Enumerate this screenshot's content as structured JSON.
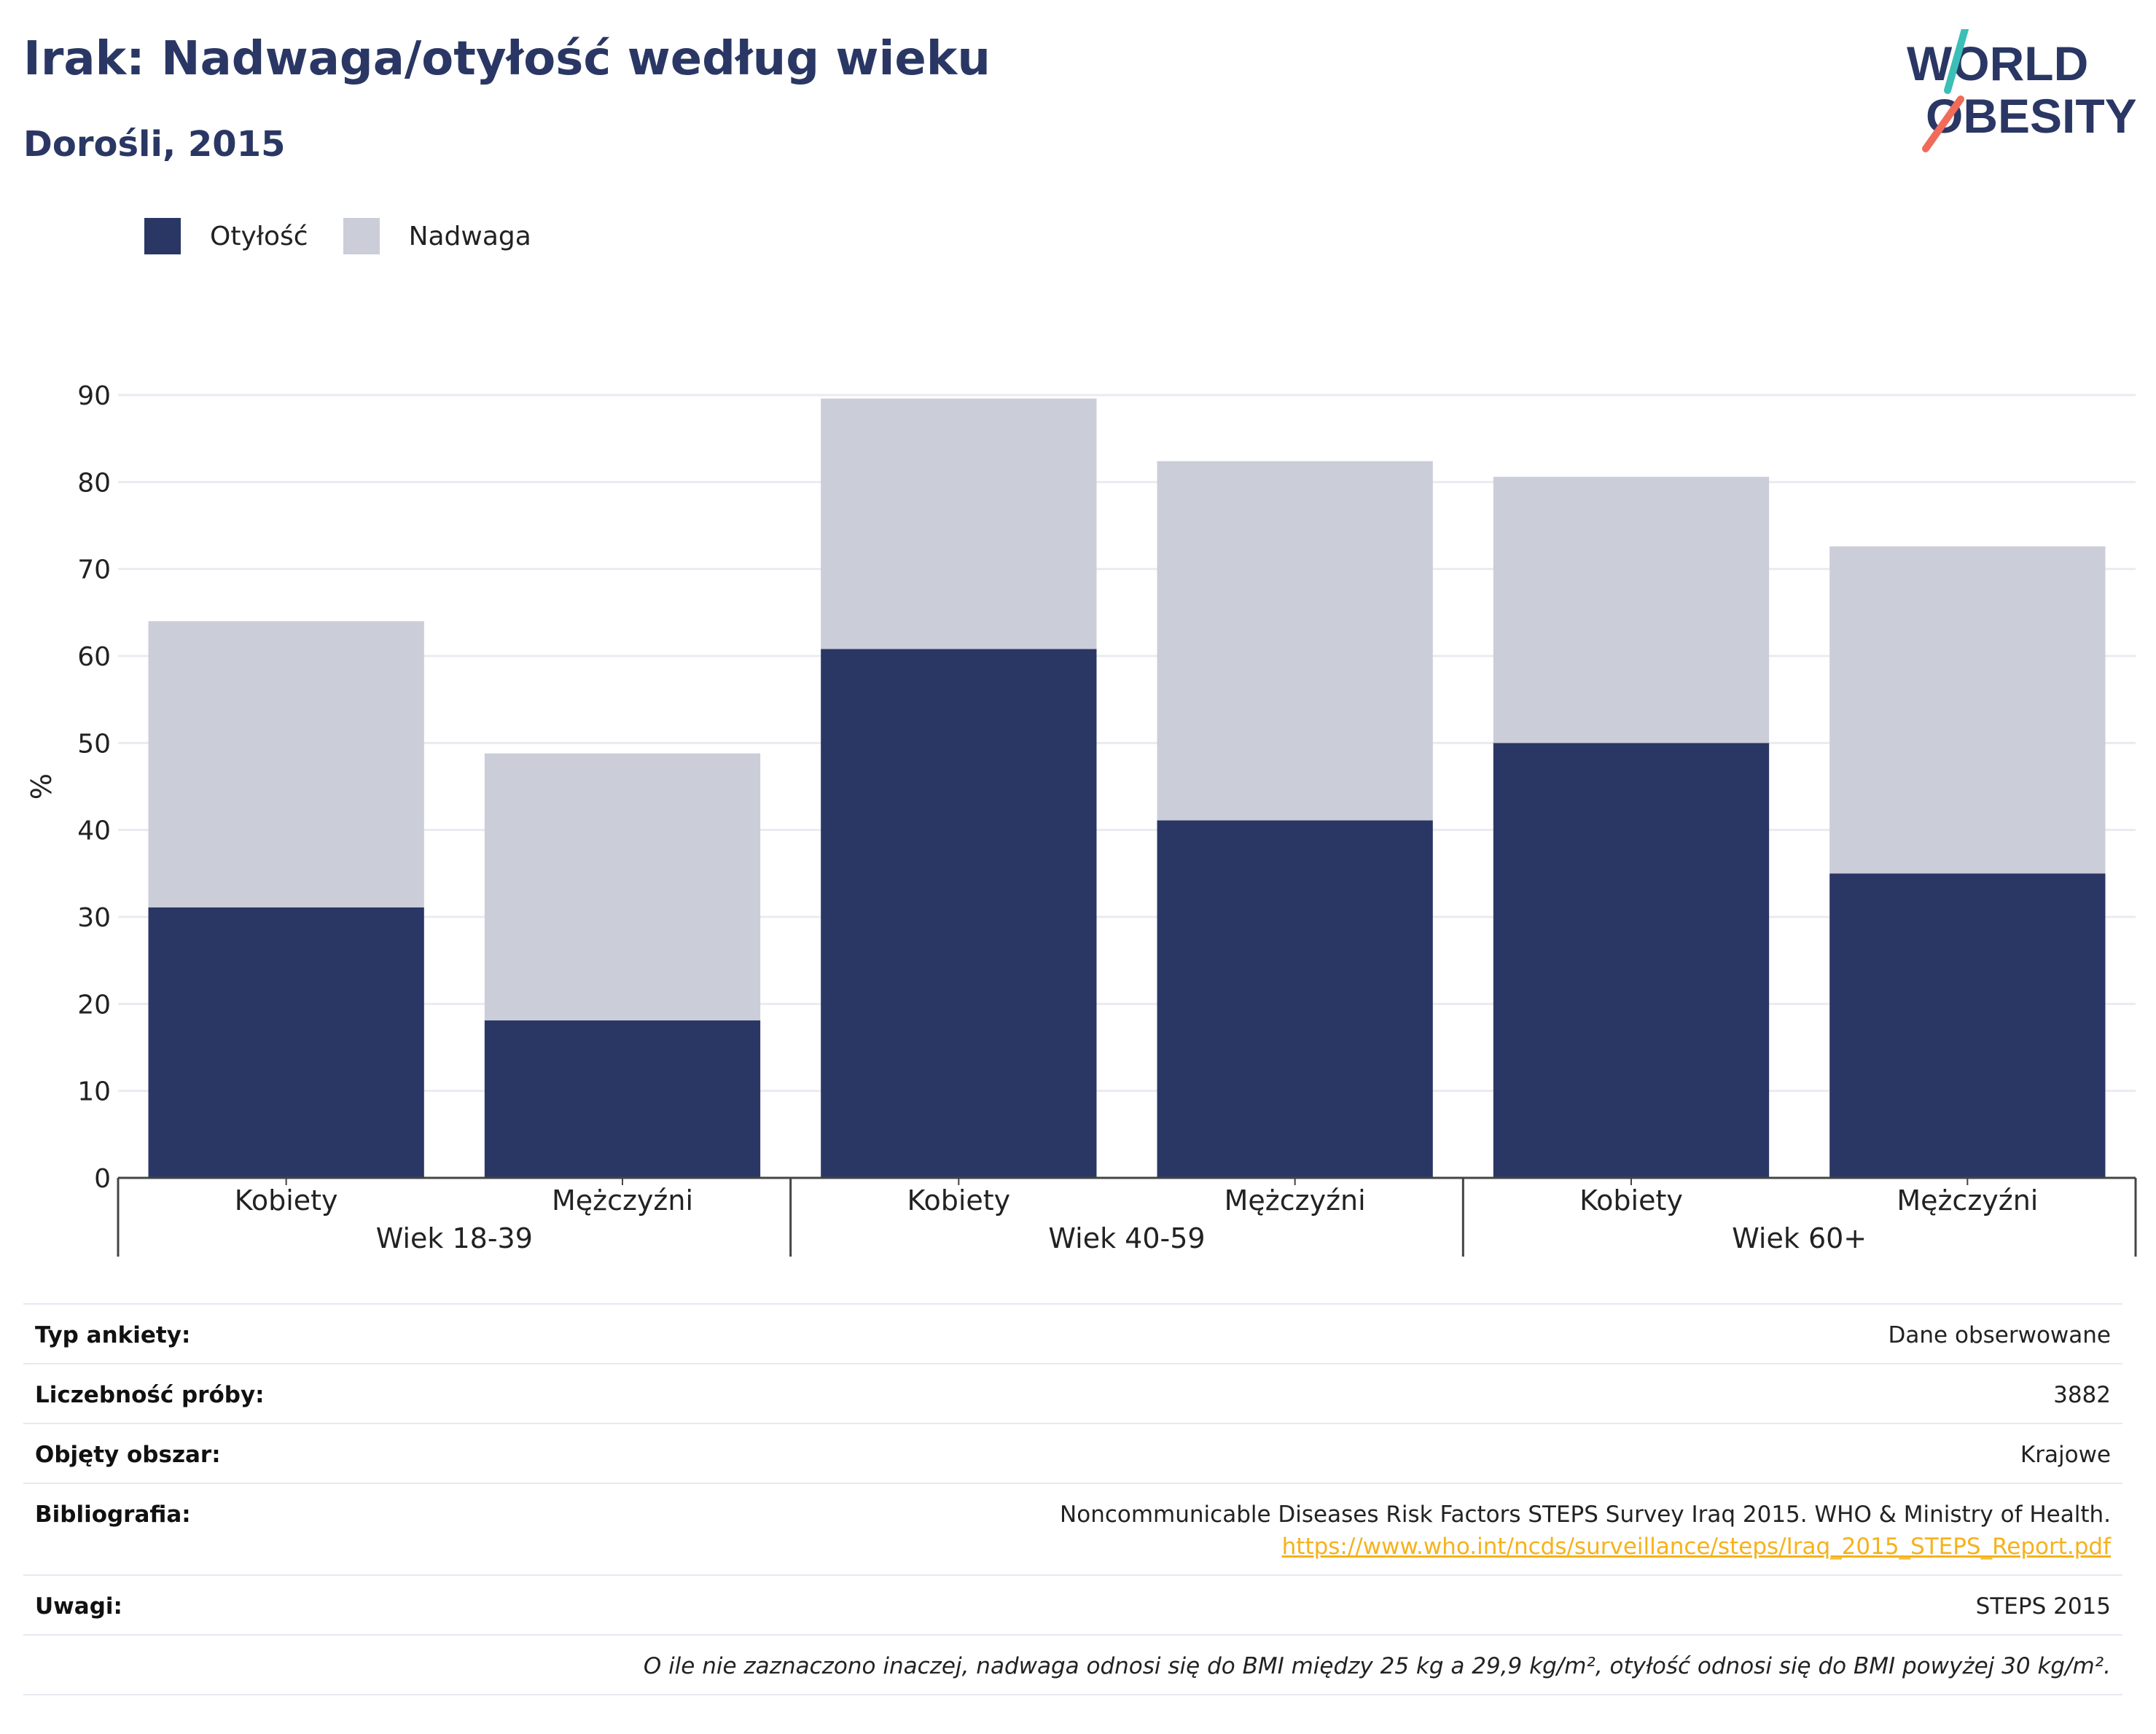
{
  "header": {
    "title": "Irak: Nadwaga/otyłość według wieku",
    "subtitle": "Dorośli, 2015",
    "logo_line1": "WORLD",
    "logo_line2": "OBESITY"
  },
  "colors": {
    "obesity": "#2a3764",
    "overweight": "#cbcdd9",
    "title": "#2a3764",
    "link": "#f5b21b",
    "logo_teal": "#3bbfb8",
    "logo_coral": "#f06b5a"
  },
  "legend": [
    {
      "label": "Otyłość",
      "color": "#2a3764"
    },
    {
      "label": "Nadwaga",
      "color": "#cbcdd9"
    }
  ],
  "chart_data": {
    "type": "bar",
    "stacked": true,
    "ylabel": "%",
    "ylim": [
      0,
      90
    ],
    "yticks": [
      0,
      10,
      20,
      30,
      40,
      50,
      60,
      70,
      80,
      90
    ],
    "grid": true,
    "legend_position": "top-left",
    "groups": [
      {
        "label": "Wiek 18-39",
        "categories": [
          "Kobiety",
          "Mężczyźni"
        ]
      },
      {
        "label": "Wiek 40-59",
        "categories": [
          "Kobiety",
          "Mężczyźni"
        ]
      },
      {
        "label": "Wiek 60+",
        "categories": [
          "Kobiety",
          "Mężczyźni"
        ]
      }
    ],
    "series": [
      {
        "name": "Otyłość",
        "values": [
          31.1,
          18.1,
          60.8,
          41.1,
          50.0,
          35.0
        ]
      },
      {
        "name": "Nadwaga",
        "values": [
          32.9,
          30.7,
          28.8,
          41.3,
          30.6,
          37.6
        ]
      }
    ]
  },
  "info": {
    "rows": [
      {
        "label": "Typ ankiety:",
        "value": "Dane obserwowane"
      },
      {
        "label": "Liczebność próby:",
        "value": "3882"
      },
      {
        "label": "Objęty obszar:",
        "value": "Krajowe"
      },
      {
        "label": "Bibliografia:",
        "value": "Noncommunicable Diseases Risk Factors STEPS Survey Iraq 2015. WHO & Ministry of Health.",
        "link": "https://www.who.int/ncds/surveillance/steps/Iraq_2015_STEPS_Report.pdf"
      },
      {
        "label": "Uwagi:",
        "value": "STEPS 2015"
      }
    ],
    "note": "O ile nie zaznaczono inaczej, nadwaga odnosi się do BMI między 25 kg a 29,9 kg/m², otyłość odnosi się do BMI powyżej 30 kg/m²."
  }
}
